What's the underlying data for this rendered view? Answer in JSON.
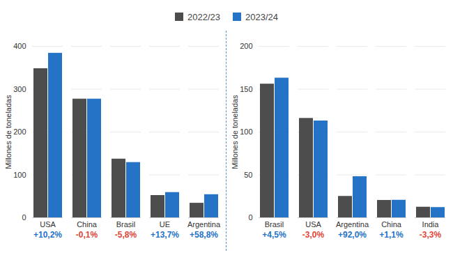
{
  "chart_data": [
    {
      "type": "bar",
      "y_label": "Millones de toneladas",
      "categories": [
        "USA",
        "China",
        "Brasil",
        "UE",
        "Argentina"
      ],
      "series": [
        {
          "name": "2022/23",
          "color": "#4d4d4d",
          "values": [
            348,
            277,
            137,
            52,
            34
          ]
        },
        {
          "name": "2023/24",
          "color": "#2473c6",
          "values": [
            384,
            277,
            129,
            59,
            54
          ]
        }
      ],
      "annotations": [
        "+10,2%",
        "-0,1%",
        "-5,8%",
        "+13,7%",
        "+58,8%"
      ],
      "ylim": [
        0,
        400
      ],
      "yticks": [
        0,
        100,
        200,
        300,
        400
      ],
      "grid": true
    },
    {
      "type": "bar",
      "y_label": "Millones de toneladas",
      "categories": [
        "Brasil",
        "USA",
        "Argentina",
        "China",
        "India"
      ],
      "series": [
        {
          "name": "2022/23",
          "color": "#4d4d4d",
          "values": [
            156,
            116,
            25,
            20.3,
            12.4
          ]
        },
        {
          "name": "2023/24",
          "color": "#2473c6",
          "values": [
            163,
            113,
            48,
            20.5,
            12
          ]
        }
      ],
      "annotations": [
        "+4,5%",
        "-3,0%",
        "+92,0%",
        "+1,1%",
        "-3,3%"
      ],
      "ylim": [
        0,
        200
      ],
      "yticks": [
        0,
        50,
        100,
        150,
        200
      ],
      "grid": true
    }
  ]
}
